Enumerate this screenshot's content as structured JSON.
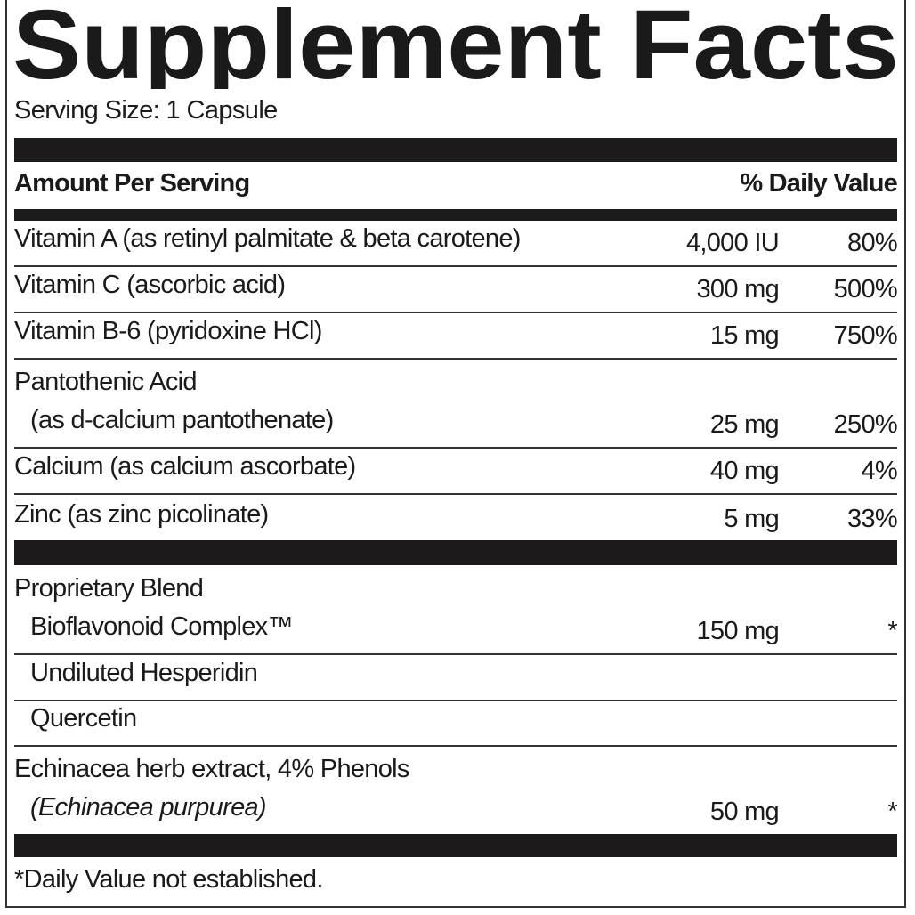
{
  "title": "Supplement Facts",
  "serving_size": "Serving Size: 1 Capsule",
  "header": {
    "amount": "Amount Per Serving",
    "dv": "% Daily Value"
  },
  "nutrients": [
    {
      "name": "Vitamin A (as retinyl palmitate & beta carotene)",
      "amount": "4,000 IU",
      "dv": "80%"
    },
    {
      "name": "Vitamin C (ascorbic acid)",
      "amount": "300 mg",
      "dv": "500%"
    },
    {
      "name": "Vitamin B-6 (pyridoxine HCl)",
      "amount": "15 mg",
      "dv": "750%"
    },
    {
      "name": "Pantothenic Acid",
      "sub": "(as d-calcium pantothenate)",
      "amount": "25 mg",
      "dv": "250%"
    },
    {
      "name": "Calcium (as calcium ascorbate)",
      "amount": "40 mg",
      "dv": "4%"
    },
    {
      "name": "Zinc (as zinc picolinate)",
      "amount": "5 mg",
      "dv": "33%"
    }
  ],
  "blend": {
    "name": "Proprietary Blend",
    "sub": "Bioflavonoid Complex™",
    "amount": "150 mg",
    "dv": "*",
    "items": [
      "Undiluted Hesperidin",
      "Quercetin"
    ]
  },
  "echinacea": {
    "name": "Echinacea herb extract, 4% Phenols",
    "sub": "(Echinacea purpurea)",
    "amount": "50 mg",
    "dv": "*"
  },
  "footnote": "*Daily Value not established."
}
